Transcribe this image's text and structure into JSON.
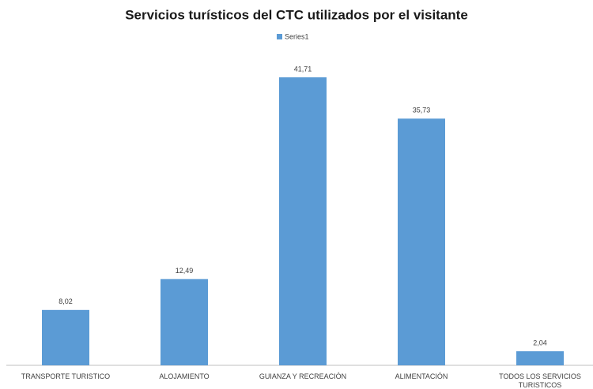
{
  "chart_data": {
    "type": "bar",
    "title": "Servicios turísticos del CTC utilizados por el visitante",
    "categories": [
      "TRANSPORTE TURISTICO",
      "ALOJAMIENTO",
      "GUIANZA Y RECREACIÓN",
      "ALIMENTACIÓN",
      "TODOS LOS SERVICIOS TURISTICOS"
    ],
    "series": [
      {
        "name": "Series1",
        "color": "#5b9bd5",
        "values": [
          8.02,
          12.49,
          41.71,
          35.73,
          2.04
        ],
        "value_labels": [
          "8,02",
          "12,49",
          "41,71",
          "35,73",
          "2,04"
        ]
      }
    ],
    "legend": "top"
  }
}
